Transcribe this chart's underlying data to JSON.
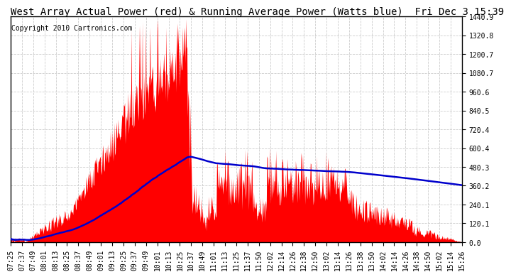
{
  "title": "West Array Actual Power (red) & Running Average Power (Watts blue)  Fri Dec 3 15:39",
  "copyright": "Copyright 2010 Cartronics.com",
  "yticks": [
    0.0,
    120.1,
    240.1,
    360.2,
    480.3,
    600.4,
    720.4,
    840.5,
    960.6,
    1080.7,
    1200.7,
    1320.8,
    1440.9
  ],
  "ymax": 1440.9,
  "ymin": 0.0,
  "bg_color": "#ffffff",
  "grid_color": "#cccccc",
  "xtick_labels": [
    "07:25",
    "07:37",
    "07:49",
    "08:01",
    "08:13",
    "08:25",
    "08:37",
    "08:49",
    "09:01",
    "09:13",
    "09:25",
    "09:37",
    "09:49",
    "10:01",
    "10:13",
    "10:25",
    "10:37",
    "10:49",
    "11:01",
    "11:13",
    "11:25",
    "11:37",
    "11:50",
    "12:02",
    "12:14",
    "12:26",
    "12:38",
    "12:50",
    "13:02",
    "13:14",
    "13:26",
    "13:38",
    "13:50",
    "14:02",
    "14:14",
    "14:26",
    "14:38",
    "14:50",
    "15:02",
    "15:14",
    "15:26"
  ],
  "red_color": "#ff0000",
  "blue_color": "#0000cc",
  "title_fontsize": 10,
  "tick_fontsize": 7,
  "copyright_fontsize": 7
}
